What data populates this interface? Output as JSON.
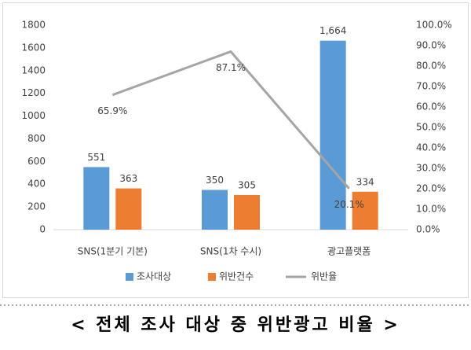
{
  "chart_data": {
    "type": "bar",
    "title": "< 전체 조사 대상 중 위반광고 비율 >",
    "categories": [
      "SNS(1분기 기본)",
      "SNS(1차 수시)",
      "광고플랫폼"
    ],
    "series": [
      {
        "name": "조사대상",
        "color": "#5b9bd5",
        "type": "bar",
        "values": [
          551,
          350,
          1664
        ],
        "value_labels": [
          "551",
          "350",
          "1,664"
        ]
      },
      {
        "name": "위반건수",
        "color": "#ed7d31",
        "type": "bar",
        "values": [
          363,
          305,
          334
        ],
        "value_labels": [
          "363",
          "305",
          "334"
        ]
      },
      {
        "name": "위반율",
        "color": "#a5a5a5",
        "type": "line",
        "axis": "y2",
        "values": [
          65.9,
          87.1,
          20.1
        ],
        "value_labels": [
          "65.9%",
          "87.1%",
          "20.1%"
        ]
      }
    ],
    "ylim": [
      0,
      1800
    ],
    "yticks": [
      0,
      200,
      400,
      600,
      800,
      1000,
      1200,
      1400,
      1600,
      1800
    ],
    "y2lim": [
      0,
      100
    ],
    "y2ticks": [
      {
        "value": 0,
        "label": "0.0%"
      },
      {
        "value": 10,
        "label": "10.0%"
      },
      {
        "value": 20,
        "label": "20.0%"
      },
      {
        "value": 30,
        "label": "30.0%"
      },
      {
        "value": 40,
        "label": "40.0%"
      },
      {
        "value": 50,
        "label": "50.0%"
      },
      {
        "value": 60,
        "label": "60.0%"
      },
      {
        "value": 70,
        "label": "70.0%"
      },
      {
        "value": 80,
        "label": "80.0%"
      },
      {
        "value": 90,
        "label": "90.0%"
      },
      {
        "value": 100,
        "label": "100.0%"
      }
    ],
    "legend": "bottom"
  }
}
